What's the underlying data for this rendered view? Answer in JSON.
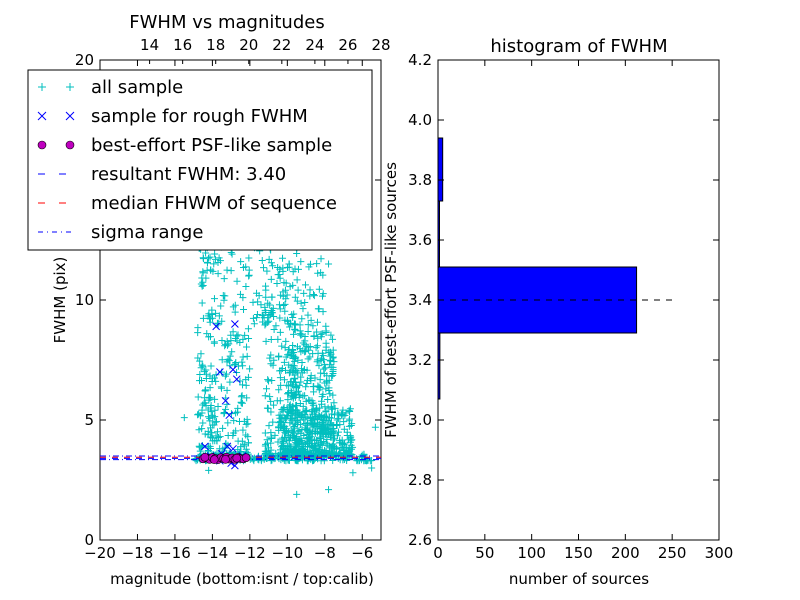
{
  "chart_data": [
    {
      "type": "scatter",
      "title": "FWHM vs magnitudes",
      "xlabel": "magnitude (bottom:isnt / top:calib)",
      "ylabel": "FWHM (pix)",
      "xlim": [
        -20,
        -5
      ],
      "ylim": [
        0,
        20
      ],
      "xticks": [
        "−20",
        "−18",
        "−16",
        "−14",
        "−12",
        "−10",
        "−8",
        "−6"
      ],
      "xtick_values": [
        -20,
        -18,
        -16,
        -14,
        -12,
        -10,
        -8,
        -6
      ],
      "top_xticks": [
        "14",
        "16",
        "18",
        "20",
        "22",
        "24",
        "26",
        "28"
      ],
      "top_xtick_values": [
        14,
        16,
        18,
        20,
        22,
        24,
        26,
        28
      ],
      "top_xlim": [
        11,
        28
      ],
      "yticks": [
        "0",
        "5",
        "10",
        "15",
        "20"
      ],
      "ytick_values": [
        0,
        5,
        10,
        15,
        20
      ],
      "legend": [
        {
          "label": "all sample",
          "marker": "+",
          "color": "#00BFBF"
        },
        {
          "label": "sample for rough FWHM",
          "marker": "x",
          "color": "#0000FF"
        },
        {
          "label": "best-effort PSF-like sample",
          "marker": "o",
          "color": "#BF00BF"
        },
        {
          "label": "resultant FWHM: 3.40",
          "marker": "dashed",
          "color": "#0000FF"
        },
        {
          "label": "median FHWM of sequence",
          "marker": "dashed",
          "color": "#FF0000"
        },
        {
          "label": "sigma range",
          "marker": "dashdot",
          "color": "#0000FF"
        }
      ],
      "legend_loc": "upper-left",
      "resultant_fwhm": 3.4,
      "median_fwhm": 3.45,
      "sigma_range": [
        3.35,
        3.5
      ],
      "series": [
        {
          "name": "all sample",
          "clusters": [
            {
              "x_range": [
                -14.8,
                -13.8
              ],
              "y_range": [
                3.5,
                14
              ],
              "count": 140
            },
            {
              "x_range": [
                -13.9,
                -12.0
              ],
              "y_range": [
                3.5,
                19
              ],
              "count": 230
            },
            {
              "x_range": [
                -11.2,
                -9.4
              ],
              "y_range": [
                3.5,
                19
              ],
              "count": 280
            },
            {
              "x_range": [
                -10.0,
                -7.5
              ],
              "y_range": [
                3.5,
                9
              ],
              "count": 380
            },
            {
              "x_range": [
                -10.5,
                -6.5
              ],
              "y_range": [
                3.5,
                5.5
              ],
              "count": 260
            },
            {
              "x_range": [
                -15.0,
                -5.5
              ],
              "y_range": [
                3.3,
                3.6
              ],
              "count": 180
            },
            {
              "x_range": [
                -12.0,
                -8.0
              ],
              "y_range": [
                9,
                16
              ],
              "count": 120
            }
          ],
          "points": [
            [
              -15.5,
              5.1
            ],
            [
              -14.2,
              3.9
            ],
            [
              -9.5,
              1.9
            ],
            [
              -7.8,
              2.1
            ],
            [
              -6.5,
              2.8
            ],
            [
              -5.5,
              3.0
            ],
            [
              -5.3,
              4.7
            ],
            [
              -7.8,
              11.5
            ],
            [
              -14.2,
              2.9
            ]
          ]
        },
        {
          "name": "sample for rough FWHM",
          "points": [
            [
              -14.4,
              3.9
            ],
            [
              -13.8,
              8.9
            ],
            [
              -12.8,
              9.0
            ],
            [
              -13.6,
              7.0
            ],
            [
              -13.3,
              5.8
            ],
            [
              -12.9,
              7.1
            ],
            [
              -12.7,
              6.7
            ],
            [
              -13.1,
              5.2
            ],
            [
              -13.2,
              3.9
            ],
            [
              -12.9,
              3.8
            ],
            [
              -13.5,
              3.6
            ],
            [
              -14.1,
              3.5
            ],
            [
              -13.0,
              3.2
            ],
            [
              -12.8,
              3.1
            ],
            [
              -13.6,
              3.3
            ],
            [
              -12.6,
              3.4
            ],
            [
              -13.9,
              3.4
            ],
            [
              -12.4,
              3.5
            ]
          ]
        },
        {
          "name": "best-effort PSF-like sample",
          "points": [
            [
              -14.5,
              3.38
            ],
            [
              -14.3,
              3.42
            ],
            [
              -14.15,
              3.36
            ],
            [
              -14.0,
              3.44
            ],
            [
              -13.85,
              3.4
            ],
            [
              -13.7,
              3.35
            ],
            [
              -13.55,
              3.43
            ],
            [
              -13.4,
              3.39
            ],
            [
              -13.25,
              3.45
            ],
            [
              -13.1,
              3.37
            ],
            [
              -12.95,
              3.42
            ],
            [
              -12.8,
              3.36
            ],
            [
              -12.65,
              3.44
            ],
            [
              -12.5,
              3.4
            ],
            [
              -12.35,
              3.38
            ],
            [
              -12.2,
              3.43
            ],
            [
              -14.4,
              3.45
            ],
            [
              -13.9,
              3.35
            ],
            [
              -13.3,
              3.36
            ],
            [
              -12.7,
              3.41
            ]
          ]
        }
      ]
    },
    {
      "type": "bar",
      "orientation": "horizontal",
      "title": "histogram of FWHM",
      "xlabel": "number of sources",
      "ylabel": "FWHM of best-effort PSF-like sources",
      "xlim": [
        0,
        300
      ],
      "ylim": [
        2.6,
        4.2
      ],
      "xticks": [
        "0",
        "50",
        "100",
        "150",
        "200",
        "250",
        "300"
      ],
      "xtick_values": [
        0,
        50,
        100,
        150,
        200,
        250,
        300
      ],
      "yticks": [
        "2.6",
        "2.8",
        "3.0",
        "3.2",
        "3.4",
        "3.6",
        "3.8",
        "4.0",
        "4.2"
      ],
      "ytick_values": [
        2.6,
        2.8,
        3.0,
        3.2,
        3.4,
        3.6,
        3.8,
        4.0,
        4.2
      ],
      "bar_color": "#0000FF",
      "bins": [
        {
          "from": 3.07,
          "to": 3.29,
          "count": 2
        },
        {
          "from": 3.29,
          "to": 3.51,
          "count": 212
        },
        {
          "from": 3.51,
          "to": 3.73,
          "count": 1
        },
        {
          "from": 3.73,
          "to": 3.94,
          "count": 5
        }
      ],
      "reference_line": {
        "y": 3.4,
        "x_range": [
          0,
          255
        ],
        "style": "dashed",
        "color": "#000000"
      }
    }
  ]
}
